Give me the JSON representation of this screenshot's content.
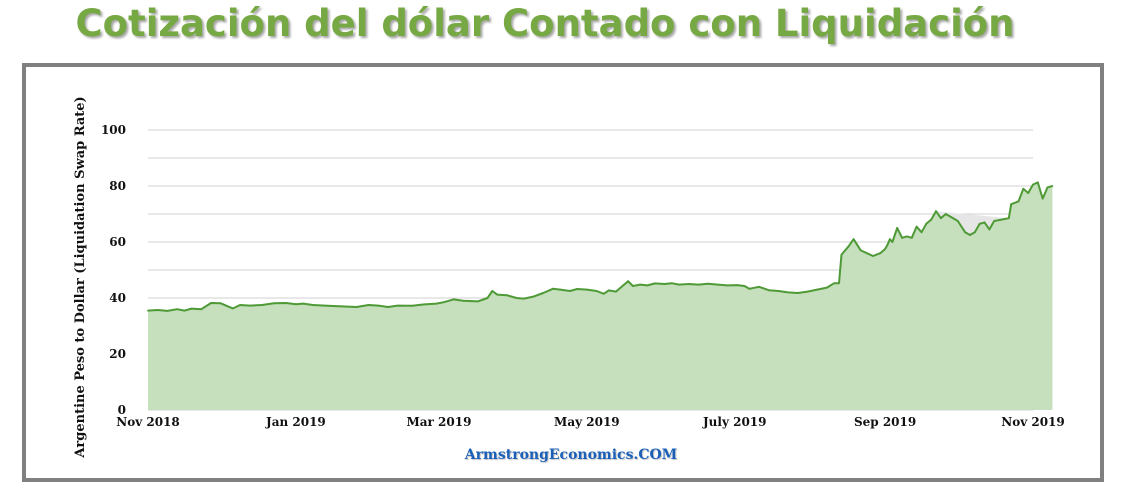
{
  "title": "Cotización del dólar Contado con Liquidación",
  "watermark": "ArmstrongEconomics.COM",
  "colors": {
    "title": "#76a843",
    "line": "#4e9a36",
    "area": "#c6dfbd",
    "area_gap": "#e6e6e6",
    "frame": "#808080",
    "grid": "#d0d0d0",
    "watermark": "#1a5fb8"
  },
  "chart_data": {
    "type": "area",
    "title": "",
    "xlabel": "",
    "ylabel": "Argentine Peso to Dollar (Liquidation Swap Rate)",
    "ylim": [
      0,
      100
    ],
    "yticks": [
      0,
      20,
      40,
      60,
      80,
      100
    ],
    "xlim": [
      "2018-11-01",
      "2019-11-01"
    ],
    "grid": true,
    "xticks": [
      {
        "date": "2018-11-01",
        "label": "Nov 2018"
      },
      {
        "date": "2019-01-01",
        "label": "Jan 2019"
      },
      {
        "date": "2019-03-01",
        "label": "Mar 2019"
      },
      {
        "date": "2019-05-01",
        "label": "May 2019"
      },
      {
        "date": "2019-07-01",
        "label": "July 2019"
      },
      {
        "date": "2019-09-01",
        "label": "Sep 2019"
      },
      {
        "date": "2019-11-01",
        "label": "Nov 2019"
      }
    ],
    "series": [
      {
        "name": "",
        "points": [
          [
            "2018-11-01",
            35.5
          ],
          [
            "2018-11-05",
            35.7
          ],
          [
            "2018-11-09",
            35.4
          ],
          [
            "2018-11-13",
            36.0
          ],
          [
            "2018-11-16",
            35.5
          ],
          [
            "2018-11-19",
            36.2
          ],
          [
            "2018-11-23",
            36.0
          ],
          [
            "2018-11-27",
            38.2
          ],
          [
            "2018-12-01",
            38.1
          ],
          [
            "2018-12-04",
            37.0
          ],
          [
            "2018-12-06",
            36.3
          ],
          [
            "2018-12-09",
            37.5
          ],
          [
            "2018-12-13",
            37.3
          ],
          [
            "2018-12-18",
            37.5
          ],
          [
            "2018-12-23",
            38.1
          ],
          [
            "2018-12-28",
            38.2
          ],
          [
            "2019-01-01",
            37.8
          ],
          [
            "2019-01-04",
            38.0
          ],
          [
            "2019-01-08",
            37.5
          ],
          [
            "2019-01-14",
            37.2
          ],
          [
            "2019-01-20",
            37.0
          ],
          [
            "2019-01-26",
            36.8
          ],
          [
            "2019-01-31",
            37.5
          ],
          [
            "2019-02-04",
            37.3
          ],
          [
            "2019-02-08",
            36.8
          ],
          [
            "2019-02-12",
            37.3
          ],
          [
            "2019-02-18",
            37.2
          ],
          [
            "2019-02-23",
            37.7
          ],
          [
            "2019-02-28",
            38.0
          ],
          [
            "2019-03-03",
            38.5
          ],
          [
            "2019-03-07",
            39.5
          ],
          [
            "2019-03-11",
            39.0
          ],
          [
            "2019-03-17",
            38.8
          ],
          [
            "2019-03-21",
            40.0
          ],
          [
            "2019-03-23",
            42.5
          ],
          [
            "2019-03-25",
            41.2
          ],
          [
            "2019-03-29",
            41.0
          ],
          [
            "2019-04-02",
            40.0
          ],
          [
            "2019-04-05",
            39.8
          ],
          [
            "2019-04-09",
            40.5
          ],
          [
            "2019-04-13",
            41.8
          ],
          [
            "2019-04-17",
            43.3
          ],
          [
            "2019-04-20",
            43.0
          ],
          [
            "2019-04-24",
            42.5
          ],
          [
            "2019-04-27",
            43.2
          ],
          [
            "2019-05-01",
            43.0
          ],
          [
            "2019-05-05",
            42.5
          ],
          [
            "2019-05-08",
            41.5
          ],
          [
            "2019-05-10",
            42.7
          ],
          [
            "2019-05-13",
            42.3
          ],
          [
            "2019-05-16",
            44.5
          ],
          [
            "2019-05-18",
            46.0
          ],
          [
            "2019-05-20",
            44.3
          ],
          [
            "2019-05-23",
            44.8
          ],
          [
            "2019-05-26",
            44.5
          ],
          [
            "2019-05-29",
            45.2
          ],
          [
            "2019-06-02",
            45.0
          ],
          [
            "2019-06-05",
            45.3
          ],
          [
            "2019-06-08",
            44.8
          ],
          [
            "2019-06-12",
            45.0
          ],
          [
            "2019-06-16",
            44.8
          ],
          [
            "2019-06-20",
            45.1
          ],
          [
            "2019-06-24",
            44.8
          ],
          [
            "2019-06-28",
            44.5
          ],
          [
            "2019-07-02",
            44.6
          ],
          [
            "2019-07-05",
            44.3
          ],
          [
            "2019-07-07",
            43.3
          ],
          [
            "2019-07-11",
            44.0
          ],
          [
            "2019-07-15",
            42.8
          ],
          [
            "2019-07-19",
            42.5
          ],
          [
            "2019-07-23",
            42.0
          ],
          [
            "2019-07-27",
            41.8
          ],
          [
            "2019-07-31",
            42.3
          ],
          [
            "2019-08-04",
            43.0
          ],
          [
            "2019-08-08",
            43.7
          ],
          [
            "2019-08-11",
            45.3
          ],
          [
            "2019-08-13",
            45.3
          ],
          [
            "2019-08-14",
            55.5
          ],
          [
            "2019-08-17",
            58.5
          ],
          [
            "2019-08-19",
            61.0
          ],
          [
            "2019-08-22",
            57.0
          ],
          [
            "2019-08-27",
            55.0
          ],
          [
            "2019-08-30",
            56.0
          ],
          [
            "2019-09-01",
            57.5
          ],
          [
            "2019-09-02",
            59.0
          ],
          [
            "2019-09-03",
            61.0
          ],
          [
            "2019-09-04",
            60.0
          ],
          [
            "2019-09-06",
            65.0
          ],
          [
            "2019-09-08",
            61.5
          ],
          [
            "2019-09-10",
            62.0
          ],
          [
            "2019-09-12",
            61.5
          ],
          [
            "2019-09-14",
            65.5
          ],
          [
            "2019-09-16",
            63.5
          ],
          [
            "2019-09-18",
            66.5
          ],
          [
            "2019-09-20",
            68.0
          ],
          [
            "2019-09-22",
            71.0
          ],
          [
            "2019-09-24",
            68.5
          ],
          [
            "2019-09-26",
            70.0
          ],
          [
            "2019-09-28",
            69.0
          ],
          [
            "2019-10-01",
            67.5
          ],
          [
            "2019-10-04",
            63.5
          ],
          [
            "2019-10-06",
            62.5
          ],
          [
            "2019-10-08",
            63.5
          ],
          [
            "2019-10-10",
            66.5
          ],
          [
            "2019-10-12",
            67.0
          ],
          [
            "2019-10-14",
            64.5
          ],
          [
            "2019-10-16",
            67.5
          ],
          [
            "2019-10-19",
            68.0
          ],
          [
            "2019-10-22",
            68.5
          ],
          [
            "2019-10-23",
            73.5
          ],
          [
            "2019-10-26",
            74.5
          ],
          [
            "2019-10-28",
            79.0
          ],
          [
            "2019-10-30",
            77.5
          ],
          [
            "2019-11-01",
            80.5
          ],
          [
            "2019-11-03",
            81.3
          ],
          [
            "2019-11-05",
            75.5
          ],
          [
            "2019-11-07",
            79.5
          ],
          [
            "2019-11-09",
            80.0
          ]
        ]
      }
    ]
  }
}
